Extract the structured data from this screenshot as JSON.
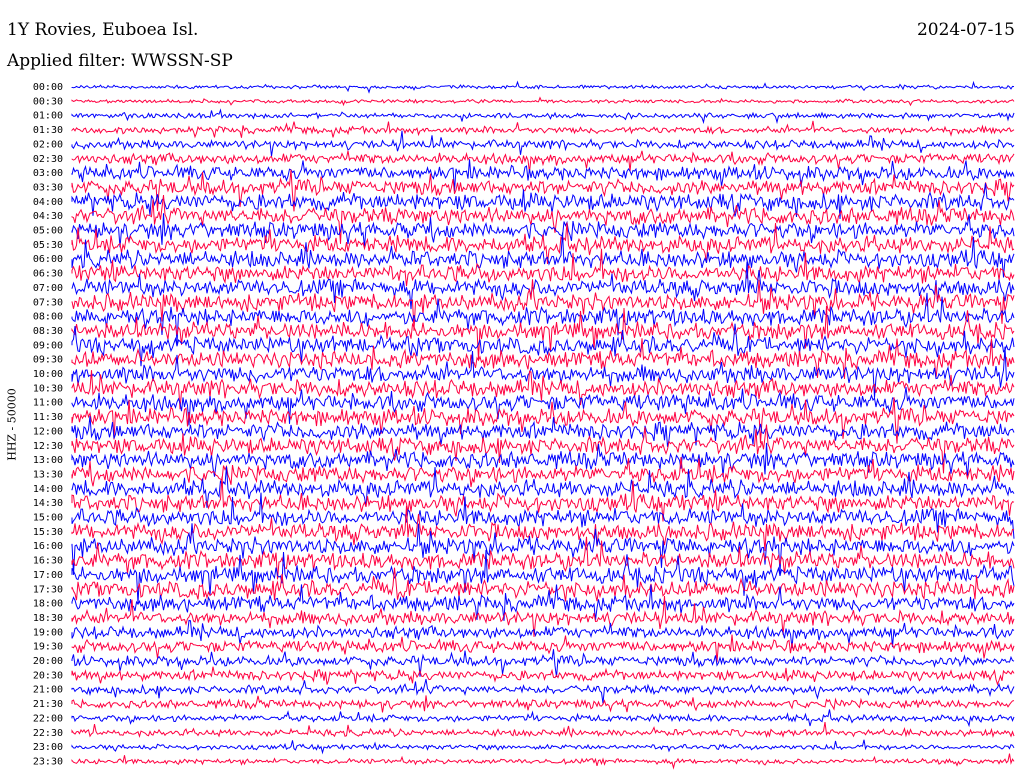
{
  "header": {
    "station": "1Y Rovies, Euboea Isl.",
    "date": "2024-07-15",
    "filter": "Applied filter: WWSSN-SP"
  },
  "chart_data": {
    "type": "helicorder",
    "ylabel": "HHZ - 50000",
    "row_labels": [
      "00:00",
      "00:30",
      "01:00",
      "01:30",
      "02:00",
      "02:30",
      "03:00",
      "03:30",
      "04:00",
      "04:30",
      "05:00",
      "05:30",
      "06:00",
      "06:30",
      "07:00",
      "07:30",
      "08:00",
      "08:30",
      "09:00",
      "09:30",
      "10:00",
      "10:30",
      "11:00",
      "11:30",
      "12:00",
      "12:30",
      "13:00",
      "13:30",
      "14:00",
      "14:30",
      "15:00",
      "15:30",
      "16:00",
      "16:30",
      "17:00",
      "17:30",
      "18:00",
      "18:30",
      "19:00",
      "19:30",
      "20:00",
      "20:30",
      "21:00",
      "21:30",
      "22:00",
      "22:30",
      "23:00",
      "23:30"
    ],
    "row_colors": [
      "#0000ff",
      "#ff0040"
    ],
    "row_amplitude": [
      2,
      2,
      3,
      4,
      5,
      6,
      8,
      9,
      10,
      10,
      10,
      10,
      10,
      10,
      10,
      10,
      10,
      10,
      10,
      10,
      10,
      10,
      10,
      10,
      10,
      10,
      10,
      10,
      10,
      10,
      10,
      10,
      10,
      10,
      10,
      10,
      9,
      8,
      7,
      7,
      6,
      6,
      5,
      5,
      4,
      4,
      3,
      3
    ]
  }
}
